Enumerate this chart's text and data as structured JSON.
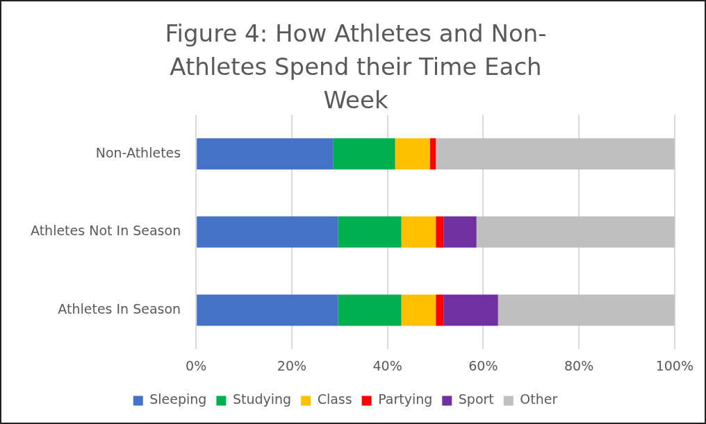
{
  "chart_data": {
    "type": "bar",
    "orientation": "horizontal",
    "stacked": true,
    "title": "Figure 4: How Athletes and Non-Athletes Spend their Time Each Week",
    "categories": [
      "Non-Athletes",
      "Athletes Not In Season",
      "Athletes In Season"
    ],
    "series": [
      {
        "name": "Sleeping",
        "color": "#4472c4",
        "values": [
          28.7,
          29.7,
          29.7
        ]
      },
      {
        "name": "Studying",
        "color": "#00b050",
        "values": [
          12.9,
          13.2,
          13.2
        ]
      },
      {
        "name": "Class",
        "color": "#ffc000",
        "values": [
          7.3,
          7.2,
          7.2
        ]
      },
      {
        "name": "Partying",
        "color": "#ff0000",
        "values": [
          1.2,
          1.6,
          1.6
        ]
      },
      {
        "name": "Sport",
        "color": "#7030a0",
        "values": [
          0,
          6.9,
          11.4
        ]
      },
      {
        "name": "Other",
        "color": "#bfbfbf",
        "values": [
          49.9,
          41.4,
          36.9
        ]
      }
    ],
    "xlim": [
      0,
      100
    ],
    "xticks": [
      {
        "value": 0,
        "label": "0%"
      },
      {
        "value": 20,
        "label": "20%"
      },
      {
        "value": 40,
        "label": "40%"
      },
      {
        "value": 60,
        "label": "60%"
      },
      {
        "value": 80,
        "label": "80%"
      },
      {
        "value": 100,
        "label": "100%"
      }
    ],
    "grid": "x",
    "legend": "bottom"
  }
}
